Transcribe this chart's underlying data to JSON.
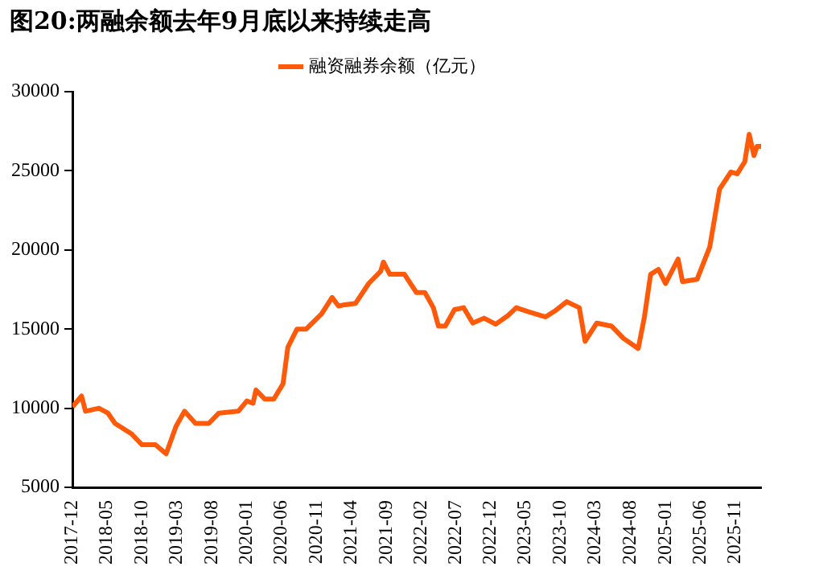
{
  "chart_data": {
    "type": "line",
    "title": "图20:两融余额去年9月底以来持续走高",
    "legend": "top",
    "grid": false,
    "marker": "none",
    "line_style": "solid",
    "xlim": [
      "2017-12-01",
      "2026-02-22"
    ],
    "xticks": [
      "2017-12",
      "2018-05",
      "2018-10",
      "2019-03",
      "2019-08",
      "2020-01",
      "2020-06",
      "2020-11",
      "2021-04",
      "2021-09",
      "2022-02",
      "2022-07",
      "2022-12",
      "2023-05",
      "2023-10",
      "2024-03",
      "2024-08",
      "2025-01",
      "2025-06",
      "2025-11"
    ],
    "ylim": [
      5000,
      30000
    ],
    "yticks": [
      5000,
      10000,
      15000,
      20000,
      25000,
      30000
    ],
    "x": [
      "2017-12-01",
      "2018-01-10",
      "2018-01-27",
      "2018-03-27",
      "2018-05-05",
      "2018-06-05",
      "2018-08-16",
      "2018-10-01",
      "2018-11-28",
      "2019-01-14",
      "2019-02-26",
      "2019-04-04",
      "2019-05-22",
      "2019-07-19",
      "2019-09-01",
      "2019-11-25",
      "2020-01-01",
      "2020-01-28",
      "2020-02-10",
      "2020-03-19",
      "2020-04-28",
      "2020-06-07",
      "2020-06-28",
      "2020-08-07",
      "2020-09-16",
      "2020-11-22",
      "2021-01-07",
      "2021-02-04",
      "2021-03-04",
      "2021-04-19",
      "2021-06-16",
      "2021-08-07",
      "2021-08-19",
      "2021-09-16",
      "2021-11-19",
      "2022-01-10",
      "2022-02-16",
      "2022-03-25",
      "2022-04-16",
      "2022-05-16",
      "2022-06-25",
      "2022-08-04",
      "2022-09-13",
      "2022-11-01",
      "2022-12-22",
      "2023-02-13",
      "2023-03-22",
      "2023-05-16",
      "2023-07-28",
      "2023-09-07",
      "2023-10-28",
      "2023-12-22",
      "2024-01-16",
      "2024-03-07",
      "2024-05-10",
      "2024-07-01",
      "2024-09-04",
      "2024-10-01",
      "2024-10-28",
      "2024-12-01",
      "2025-01-01",
      "2025-02-25",
      "2025-03-16",
      "2025-05-19",
      "2025-07-13",
      "2025-08-25",
      "2025-10-13",
      "2025-11-10",
      "2025-12-13",
      "2026-01-01",
      "2026-01-22",
      "2026-02-04",
      "2026-02-22"
    ],
    "series": [
      {
        "name": "融资融券余额（亿元）",
        "color": "#ff5a0a",
        "values": [
          10080,
          10770,
          9810,
          10000,
          9690,
          9040,
          8380,
          7690,
          7690,
          7120,
          8850,
          9810,
          9040,
          9040,
          9690,
          9810,
          10460,
          10310,
          11150,
          10580,
          10580,
          11540,
          13850,
          15000,
          15000,
          15960,
          17000,
          16460,
          16540,
          16620,
          17880,
          18650,
          19230,
          18460,
          18460,
          17310,
          17310,
          16350,
          15190,
          15190,
          16230,
          16350,
          15380,
          15690,
          15310,
          15850,
          16350,
          16080,
          15770,
          16150,
          16730,
          16350,
          14230,
          15380,
          15190,
          14420,
          13770,
          15770,
          18460,
          18770,
          17880,
          19420,
          18000,
          18150,
          20190,
          23850,
          24920,
          24810,
          25580,
          27310,
          25960,
          26540,
          26540
        ]
      }
    ]
  }
}
